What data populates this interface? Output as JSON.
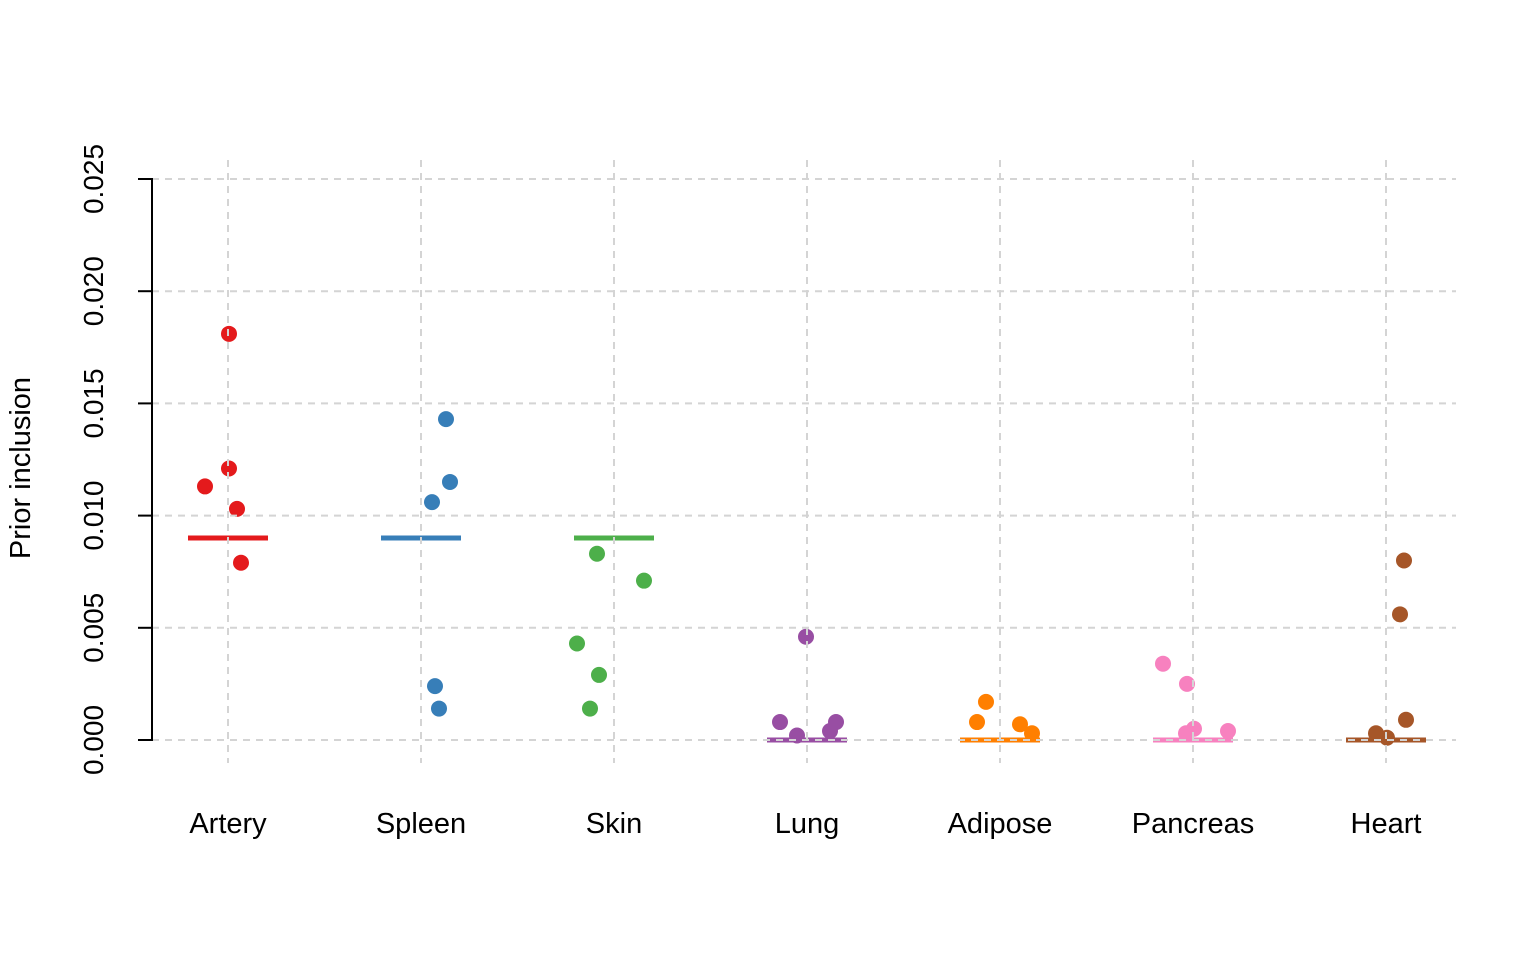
{
  "chart_data": {
    "type": "scatter",
    "variant": "strip-plot",
    "title": "",
    "xlabel": "",
    "ylabel": "Prior inclusion",
    "ylim": [
      0,
      0.025
    ],
    "yticks": [
      0.0,
      0.005,
      0.01,
      0.015,
      0.02,
      0.025
    ],
    "ytick_labels": [
      "0.000",
      "0.005",
      "0.010",
      "0.015",
      "0.020",
      "0.025"
    ],
    "grid": true,
    "grid_style": "dashed",
    "grid_color": "#d4d4d4",
    "legend": "none",
    "categories": [
      {
        "label": "Artery",
        "color": "#E41A1C",
        "summary_line_value": 0.009,
        "points": [
          {
            "value": 0.0181,
            "jitter": 1
          },
          {
            "value": 0.0121,
            "jitter": 1
          },
          {
            "value": 0.0113,
            "jitter": -23
          },
          {
            "value": 0.0103,
            "jitter": 9
          },
          {
            "value": 0.0079,
            "jitter": 13
          }
        ]
      },
      {
        "label": "Spleen",
        "color": "#377EB8",
        "summary_line_value": 0.009,
        "points": [
          {
            "value": 0.0143,
            "jitter": 25
          },
          {
            "value": 0.0115,
            "jitter": 29
          },
          {
            "value": 0.0106,
            "jitter": 11
          },
          {
            "value": 0.0024,
            "jitter": 14
          },
          {
            "value": 0.0014,
            "jitter": 18
          }
        ]
      },
      {
        "label": "Skin",
        "color": "#4DAF4A",
        "summary_line_value": 0.009,
        "points": [
          {
            "value": 0.0083,
            "jitter": -17
          },
          {
            "value": 0.0071,
            "jitter": 30
          },
          {
            "value": 0.0043,
            "jitter": -37
          },
          {
            "value": 0.0029,
            "jitter": -15
          },
          {
            "value": 0.0014,
            "jitter": -24
          }
        ]
      },
      {
        "label": "Lung",
        "color": "#984EA3",
        "summary_line_value": 0.0,
        "points": [
          {
            "value": 0.0046,
            "jitter": -1
          },
          {
            "value": 0.0008,
            "jitter": -27
          },
          {
            "value": 0.0002,
            "jitter": -10
          },
          {
            "value": 0.0008,
            "jitter": 29
          },
          {
            "value": 0.0004,
            "jitter": 23
          }
        ]
      },
      {
        "label": "Adipose",
        "color": "#FF7F00",
        "summary_line_value": 0.0,
        "points": [
          {
            "value": 0.0017,
            "jitter": -14
          },
          {
            "value": 0.0008,
            "jitter": -23
          },
          {
            "value": 0.0007,
            "jitter": 20
          },
          {
            "value": 0.0003,
            "jitter": 32
          }
        ]
      },
      {
        "label": "Pancreas",
        "color": "#F781BF",
        "summary_line_value": 0.0,
        "points": [
          {
            "value": 0.0034,
            "jitter": -30
          },
          {
            "value": 0.0025,
            "jitter": -6
          },
          {
            "value": 0.0005,
            "jitter": 1
          },
          {
            "value": 0.0003,
            "jitter": -7
          },
          {
            "value": 0.0004,
            "jitter": 35
          }
        ]
      },
      {
        "label": "Heart",
        "color": "#A65628",
        "summary_line_value": 0.0,
        "points": [
          {
            "value": 0.008,
            "jitter": 18
          },
          {
            "value": 0.0056,
            "jitter": 14
          },
          {
            "value": 0.0009,
            "jitter": 20
          },
          {
            "value": 0.0003,
            "jitter": -10
          },
          {
            "value": 0.0001,
            "jitter": 1
          }
        ]
      }
    ]
  }
}
